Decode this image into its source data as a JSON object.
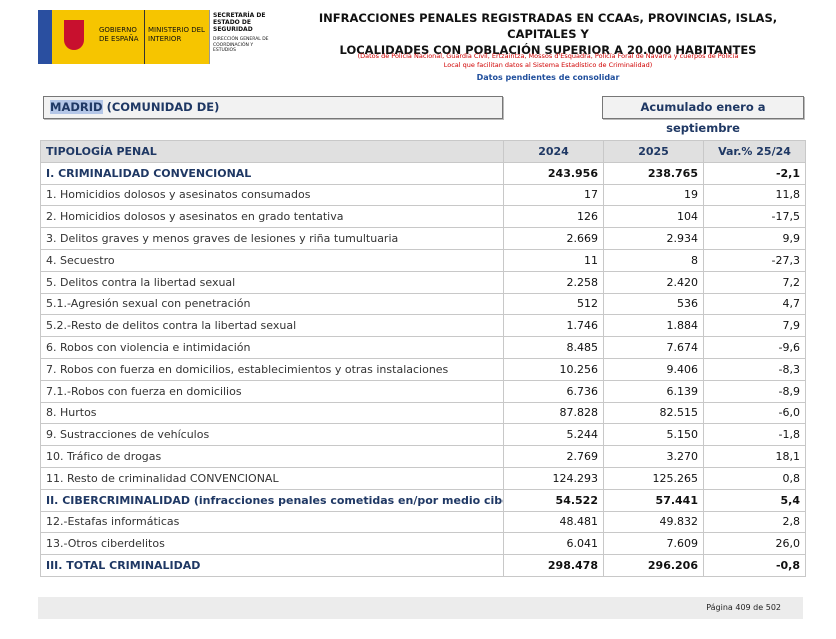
{
  "logo": {
    "gobierno": "GOBIERNO DE ESPAÑA",
    "ministerio": "MINISTERIO DEL INTERIOR",
    "secretaria": "SECRETARÍA DE ESTADO DE SEGURIDAD",
    "direccion": "DIRECCIÓN GENERAL DE COORDINACIÓN Y ESTUDIOS"
  },
  "header": {
    "title": [
      "INFRACCIONES PENALES REGISTRADAS EN CCAAs, PROVINCIAS, ISLAS, CAPITALES Y",
      "LOCALIDADES CON POBLACIÓN SUPERIOR A 20.000 HABITANTES"
    ],
    "note": [
      "(Datos de Policía Nacional, Guardia Civil, Ertzaintza, Mossos d'Esquadra, Policía Foral de Navarra y cuerpos de Policía",
      "Local que facilitan datos al Sistema Estadístico de Criminalidad)"
    ],
    "pending": "Datos pendientes de consolidar"
  },
  "region": {
    "highlight": "MADRID",
    "rest": " (COMUNIDAD DE)"
  },
  "period": "Acumulado enero a septiembre",
  "table": {
    "columns": [
      "TIPOLOGÍA PENAL",
      "2024",
      "2025",
      "Var.% 25/24"
    ],
    "rows": [
      {
        "cells": [
          "I. CRIMINALIDAD CONVENCIONAL",
          "243.956",
          "238.765",
          "-2,1"
        ],
        "bold": true
      },
      {
        "cells": [
          "1. Homicidios dolosos y asesinatos consumados",
          "17",
          "19",
          "11,8"
        ]
      },
      {
        "cells": [
          "2. Homicidios dolosos y asesinatos en grado tentativa",
          "126",
          "104",
          "-17,5"
        ]
      },
      {
        "cells": [
          "3. Delitos graves y menos graves de lesiones y riña tumultuaria",
          "2.669",
          "2.934",
          "9,9"
        ]
      },
      {
        "cells": [
          "4. Secuestro",
          "11",
          "8",
          "-27,3"
        ]
      },
      {
        "cells": [
          "5. Delitos contra la libertad sexual",
          "2.258",
          "2.420",
          "7,2"
        ]
      },
      {
        "cells": [
          "5.1.-Agresión sexual con penetración",
          "512",
          "536",
          "4,7"
        ]
      },
      {
        "cells": [
          "5.2.-Resto de delitos contra la libertad sexual",
          "1.746",
          "1.884",
          "7,9"
        ]
      },
      {
        "cells": [
          "6. Robos con violencia e intimidación",
          "8.485",
          "7.674",
          "-9,6"
        ]
      },
      {
        "cells": [
          "7. Robos con fuerza en domicilios, establecimientos y otras instalaciones",
          "10.256",
          "9.406",
          "-8,3"
        ]
      },
      {
        "cells": [
          "7.1.-Robos con fuerza en domicilios",
          "6.736",
          "6.139",
          "-8,9"
        ]
      },
      {
        "cells": [
          "8. Hurtos",
          "87.828",
          "82.515",
          "-6,0"
        ]
      },
      {
        "cells": [
          "9. Sustracciones de vehículos",
          "5.244",
          "5.150",
          "-1,8"
        ]
      },
      {
        "cells": [
          "10. Tráfico de drogas",
          "2.769",
          "3.270",
          "18,1"
        ]
      },
      {
        "cells": [
          "11. Resto de criminalidad CONVENCIONAL",
          "124.293",
          "125.265",
          "0,8"
        ]
      },
      {
        "cells": [
          "II. CIBERCRIMINALIDAD (infracciones penales cometidas en/por medio ciber)",
          "54.522",
          "57.441",
          "5,4"
        ],
        "bold": true
      },
      {
        "cells": [
          "12.-Estafas informáticas",
          "48.481",
          "49.832",
          "2,8"
        ]
      },
      {
        "cells": [
          "13.-Otros ciberdelitos",
          "6.041",
          "7.609",
          "26,0"
        ]
      },
      {
        "cells": [
          "III. TOTAL CRIMINALIDAD",
          "298.478",
          "296.206",
          "-0,8"
        ],
        "bold": true
      }
    ]
  },
  "footer": "Página 409 de 502"
}
